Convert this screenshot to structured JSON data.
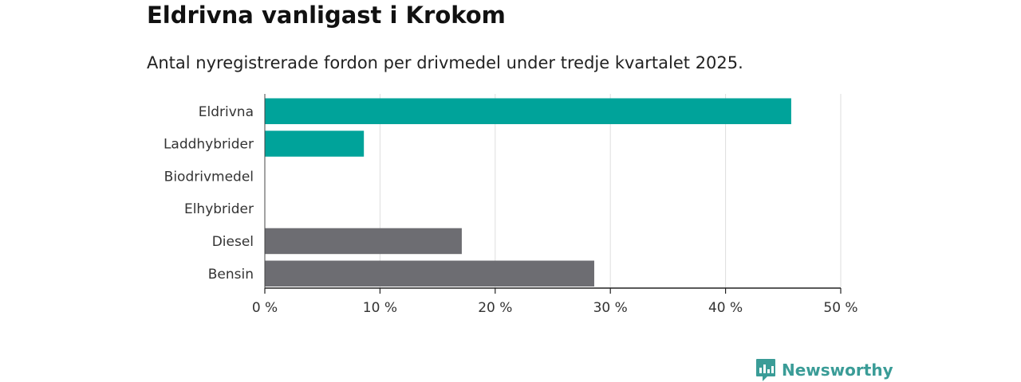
{
  "chart_data": {
    "type": "bar",
    "orientation": "horizontal",
    "title": "Eldrivna vanligast i Krokom",
    "subtitle": "Antal nyregistrerade fordon per drivmedel under tredje kvartalet 2025.",
    "categories": [
      "Eldrivna",
      "Laddhybrider",
      "Biodrivmedel",
      "Elhybrider",
      "Diesel",
      "Bensin"
    ],
    "values": [
      45.7,
      8.6,
      0,
      0,
      17.1,
      28.6
    ],
    "bar_colors": [
      "#00a39a",
      "#00a39a",
      "#00a39a",
      "#00a39a",
      "#6d6d72",
      "#6d6d72"
    ],
    "unit": "%",
    "xlim": [
      0,
      50
    ],
    "xticks": [
      0,
      10,
      20,
      30,
      40,
      50
    ],
    "xtick_labels": [
      "0 %",
      "10 %",
      "20 %",
      "30 %",
      "40 %",
      "50 %"
    ],
    "grid": true,
    "xlabel": "",
    "ylabel": ""
  },
  "brand": {
    "name": "Newsworthy",
    "color": "#3a9c97"
  }
}
